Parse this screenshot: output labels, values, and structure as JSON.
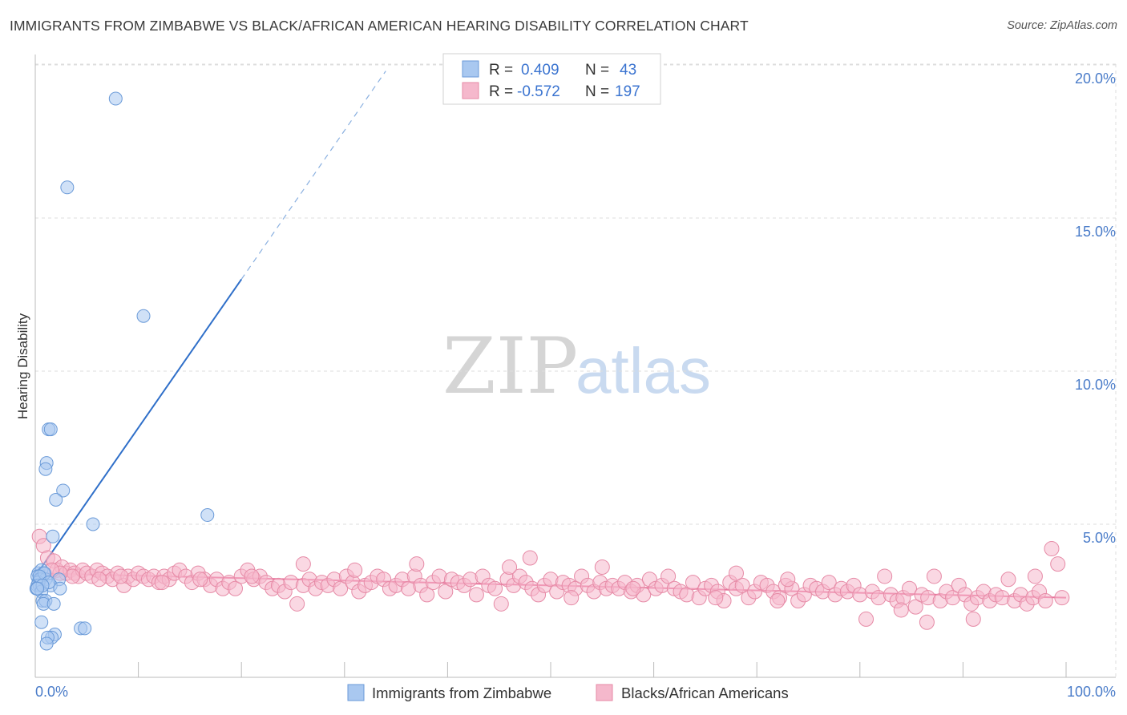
{
  "title": "IMMIGRANTS FROM ZIMBABWE VS BLACK/AFRICAN AMERICAN HEARING DISABILITY CORRELATION CHART",
  "source": "Source: ZipAtlas.com",
  "watermark": {
    "zip": "ZIP",
    "atlas": "atlas"
  },
  "colors": {
    "blue_fill": "#a9c8f0",
    "blue_stroke": "#6a9ad8",
    "blue_line": "#2f6fc9",
    "pink_fill": "#f5b8cc",
    "pink_stroke": "#e68aa6",
    "pink_line": "#e8709a",
    "tick_label": "#4a7cc9",
    "grid": "#dddddd"
  },
  "legend": {
    "rows": [
      {
        "r_label": "R =",
        "r_value": "0.409",
        "n_label": "N =",
        "n_value": "43",
        "series": "blue"
      },
      {
        "r_label": "R =",
        "r_value": "-0.572",
        "n_label": "N =",
        "n_value": "197",
        "series": "pink"
      }
    ]
  },
  "chart_data": {
    "type": "scatter",
    "title": "IMMIGRANTS FROM ZIMBABWE VS BLACK/AFRICAN AMERICAN HEARING DISABILITY CORRELATION CHART",
    "xlabel": "",
    "ylabel": "Hearing Disability",
    "xlim": [
      0,
      100
    ],
    "ylim": [
      0,
      21
    ],
    "x_tick_labels": [
      {
        "value": 0,
        "label": "0.0%"
      },
      {
        "value": 100,
        "label": "100.0%"
      }
    ],
    "y_tick_labels": [
      {
        "value": 5,
        "label": "5.0%"
      },
      {
        "value": 10,
        "label": "10.0%"
      },
      {
        "value": 15,
        "label": "15.0%"
      },
      {
        "value": 20,
        "label": "20.0%"
      }
    ],
    "grid": true,
    "series": [
      {
        "name": "Immigrants from Zimbabwe",
        "color": "blue",
        "R": 0.409,
        "N": 43,
        "trend": {
          "x0": 0,
          "y0": 3.3,
          "x1": 20,
          "y1": 13.0,
          "dash_to_x": 34,
          "dash_to_y": 19.8
        },
        "points": [
          [
            7.8,
            18.9
          ],
          [
            3.1,
            16.0
          ],
          [
            10.5,
            11.8
          ],
          [
            1.3,
            8.1
          ],
          [
            1.5,
            8.1
          ],
          [
            1.1,
            7.0
          ],
          [
            1.0,
            6.8
          ],
          [
            2.7,
            6.1
          ],
          [
            2.0,
            5.8
          ],
          [
            16.7,
            5.3
          ],
          [
            5.6,
            5.0
          ],
          [
            1.7,
            4.6
          ],
          [
            0.3,
            3.4
          ],
          [
            0.6,
            3.5
          ],
          [
            0.8,
            3.4
          ],
          [
            0.2,
            3.3
          ],
          [
            0.4,
            3.2
          ],
          [
            0.5,
            3.2
          ],
          [
            1.0,
            3.2
          ],
          [
            2.3,
            3.2
          ],
          [
            0.3,
            3.1
          ],
          [
            0.2,
            3.0
          ],
          [
            0.4,
            3.0
          ],
          [
            1.5,
            3.0
          ],
          [
            0.1,
            2.9
          ],
          [
            2.4,
            2.9
          ],
          [
            0.6,
            2.8
          ],
          [
            0.7,
            2.5
          ],
          [
            1.0,
            2.5
          ],
          [
            0.8,
            2.4
          ],
          [
            1.8,
            2.4
          ],
          [
            0.9,
            3.4
          ],
          [
            0.6,
            1.8
          ],
          [
            4.4,
            1.6
          ],
          [
            4.8,
            1.6
          ],
          [
            1.9,
            1.4
          ],
          [
            1.6,
            1.3
          ],
          [
            1.2,
            1.3
          ],
          [
            1.1,
            1.1
          ],
          [
            0.4,
            3.3
          ],
          [
            1.3,
            3.1
          ],
          [
            0.7,
            3.0
          ],
          [
            0.2,
            2.9
          ]
        ]
      },
      {
        "name": "Blacks/African Americans",
        "color": "pink",
        "R": -0.572,
        "N": 197,
        "trend": {
          "x0": 0,
          "y0": 3.4,
          "x1": 100,
          "y1": 2.6
        },
        "points": [
          [
            0.4,
            4.6
          ],
          [
            0.8,
            4.3
          ],
          [
            1.2,
            3.9
          ],
          [
            1.8,
            3.8
          ],
          [
            2.1,
            3.5
          ],
          [
            2.6,
            3.6
          ],
          [
            3.0,
            3.4
          ],
          [
            3.4,
            3.5
          ],
          [
            3.8,
            3.4
          ],
          [
            4.2,
            3.3
          ],
          [
            4.6,
            3.5
          ],
          [
            5.0,
            3.4
          ],
          [
            5.5,
            3.3
          ],
          [
            6.0,
            3.5
          ],
          [
            6.5,
            3.4
          ],
          [
            7.0,
            3.3
          ],
          [
            7.5,
            3.2
          ],
          [
            8.0,
            3.4
          ],
          [
            8.6,
            3.0
          ],
          [
            9.0,
            3.3
          ],
          [
            9.5,
            3.2
          ],
          [
            10.0,
            3.4
          ],
          [
            10.5,
            3.3
          ],
          [
            11.0,
            3.2
          ],
          [
            11.5,
            3.3
          ],
          [
            12.0,
            3.1
          ],
          [
            12.5,
            3.3
          ],
          [
            13.0,
            3.2
          ],
          [
            13.5,
            3.4
          ],
          [
            14.0,
            3.5
          ],
          [
            14.6,
            3.3
          ],
          [
            15.2,
            3.1
          ],
          [
            15.8,
            3.4
          ],
          [
            16.4,
            3.2
          ],
          [
            17.0,
            3.0
          ],
          [
            17.6,
            3.2
          ],
          [
            18.2,
            2.9
          ],
          [
            18.8,
            3.1
          ],
          [
            19.4,
            2.9
          ],
          [
            20.0,
            3.3
          ],
          [
            20.6,
            3.5
          ],
          [
            21.2,
            3.2
          ],
          [
            21.8,
            3.3
          ],
          [
            22.4,
            3.1
          ],
          [
            23.0,
            2.9
          ],
          [
            23.6,
            3.0
          ],
          [
            24.2,
            2.8
          ],
          [
            24.8,
            3.1
          ],
          [
            25.4,
            2.4
          ],
          [
            26.0,
            3.0
          ],
          [
            26.6,
            3.2
          ],
          [
            27.2,
            2.9
          ],
          [
            27.8,
            3.1
          ],
          [
            28.4,
            3.0
          ],
          [
            29.0,
            3.2
          ],
          [
            29.6,
            2.9
          ],
          [
            30.2,
            3.3
          ],
          [
            30.8,
            3.1
          ],
          [
            31.4,
            2.8
          ],
          [
            32.0,
            3.0
          ],
          [
            32.6,
            3.1
          ],
          [
            33.2,
            3.3
          ],
          [
            33.8,
            3.2
          ],
          [
            34.4,
            2.9
          ],
          [
            35.0,
            3.0
          ],
          [
            35.6,
            3.2
          ],
          [
            36.2,
            2.9
          ],
          [
            36.8,
            3.3
          ],
          [
            37.4,
            3.0
          ],
          [
            38.0,
            2.7
          ],
          [
            38.6,
            3.1
          ],
          [
            39.2,
            3.3
          ],
          [
            39.8,
            2.8
          ],
          [
            40.4,
            3.2
          ],
          [
            41.0,
            3.1
          ],
          [
            41.6,
            3.0
          ],
          [
            42.2,
            3.2
          ],
          [
            42.8,
            2.7
          ],
          [
            43.4,
            3.3
          ],
          [
            44.0,
            3.0
          ],
          [
            44.6,
            2.9
          ],
          [
            45.2,
            2.4
          ],
          [
            45.8,
            3.2
          ],
          [
            46.4,
            3.0
          ],
          [
            47.0,
            3.3
          ],
          [
            47.6,
            3.1
          ],
          [
            48.2,
            2.9
          ],
          [
            48.8,
            2.7
          ],
          [
            49.4,
            3.0
          ],
          [
            50.0,
            3.2
          ],
          [
            50.6,
            2.8
          ],
          [
            51.2,
            3.1
          ],
          [
            51.8,
            3.0
          ],
          [
            52.4,
            2.9
          ],
          [
            53.0,
            3.3
          ],
          [
            53.6,
            3.0
          ],
          [
            54.2,
            2.8
          ],
          [
            54.8,
            3.1
          ],
          [
            55.4,
            2.9
          ],
          [
            56.0,
            3.0
          ],
          [
            56.6,
            2.9
          ],
          [
            57.2,
            3.1
          ],
          [
            57.8,
            2.8
          ],
          [
            58.4,
            3.0
          ],
          [
            59.0,
            2.7
          ],
          [
            59.6,
            3.2
          ],
          [
            60.2,
            2.9
          ],
          [
            60.8,
            3.0
          ],
          [
            61.4,
            3.3
          ],
          [
            62.0,
            2.9
          ],
          [
            62.6,
            2.8
          ],
          [
            63.2,
            2.7
          ],
          [
            63.8,
            3.1
          ],
          [
            64.4,
            2.6
          ],
          [
            65.0,
            2.9
          ],
          [
            65.6,
            3.0
          ],
          [
            66.2,
            2.8
          ],
          [
            66.8,
            2.5
          ],
          [
            67.4,
            3.1
          ],
          [
            68.0,
            2.9
          ],
          [
            68.6,
            3.0
          ],
          [
            69.2,
            2.6
          ],
          [
            69.8,
            2.8
          ],
          [
            70.4,
            3.1
          ],
          [
            71.0,
            3.0
          ],
          [
            71.6,
            2.8
          ],
          [
            72.2,
            2.6
          ],
          [
            72.8,
            3.0
          ],
          [
            73.4,
            2.9
          ],
          [
            74.0,
            2.5
          ],
          [
            74.6,
            2.7
          ],
          [
            75.2,
            3.0
          ],
          [
            75.8,
            2.9
          ],
          [
            76.4,
            2.8
          ],
          [
            77.0,
            3.1
          ],
          [
            77.6,
            2.7
          ],
          [
            78.2,
            2.9
          ],
          [
            78.8,
            2.8
          ],
          [
            79.4,
            3.0
          ],
          [
            80.0,
            2.7
          ],
          [
            80.6,
            1.9
          ],
          [
            81.2,
            2.8
          ],
          [
            81.8,
            2.6
          ],
          [
            82.4,
            3.3
          ],
          [
            83.0,
            2.7
          ],
          [
            83.6,
            2.5
          ],
          [
            84.2,
            2.6
          ],
          [
            84.8,
            2.9
          ],
          [
            85.4,
            2.3
          ],
          [
            86.0,
            2.7
          ],
          [
            86.6,
            2.6
          ],
          [
            87.2,
            3.3
          ],
          [
            87.8,
            2.5
          ],
          [
            88.4,
            2.8
          ],
          [
            89.0,
            2.6
          ],
          [
            89.6,
            3.0
          ],
          [
            90.2,
            2.7
          ],
          [
            90.8,
            2.4
          ],
          [
            91.4,
            2.6
          ],
          [
            92.0,
            2.8
          ],
          [
            92.6,
            2.5
          ],
          [
            93.2,
            2.7
          ],
          [
            93.8,
            2.6
          ],
          [
            94.4,
            3.2
          ],
          [
            95.0,
            2.5
          ],
          [
            95.6,
            2.7
          ],
          [
            96.2,
            2.4
          ],
          [
            96.8,
            2.6
          ],
          [
            97.4,
            2.8
          ],
          [
            98.0,
            2.5
          ],
          [
            98.6,
            4.2
          ],
          [
            99.2,
            3.7
          ],
          [
            99.6,
            2.6
          ],
          [
            97.0,
            3.3
          ],
          [
            91.0,
            1.9
          ],
          [
            86.5,
            1.8
          ],
          [
            84.0,
            2.2
          ],
          [
            72.0,
            2.5
          ],
          [
            66.0,
            2.6
          ],
          [
            58.0,
            2.9
          ],
          [
            52.0,
            2.6
          ],
          [
            48.0,
            3.9
          ],
          [
            46.0,
            3.6
          ],
          [
            37.0,
            3.7
          ],
          [
            31.0,
            3.5
          ],
          [
            26.0,
            3.7
          ],
          [
            21.0,
            3.3
          ],
          [
            16.0,
            3.2
          ],
          [
            12.3,
            3.1
          ],
          [
            8.3,
            3.3
          ],
          [
            6.2,
            3.2
          ],
          [
            3.6,
            3.3
          ],
          [
            2.4,
            3.4
          ],
          [
            1.6,
            3.5
          ],
          [
            55.0,
            3.6
          ],
          [
            68.0,
            3.4
          ],
          [
            73.0,
            3.2
          ]
        ]
      }
    ]
  },
  "bottom_legend": [
    {
      "label": "Immigrants from Zimbabwe",
      "series": "blue"
    },
    {
      "label": "Blacks/African Americans",
      "series": "pink"
    }
  ]
}
